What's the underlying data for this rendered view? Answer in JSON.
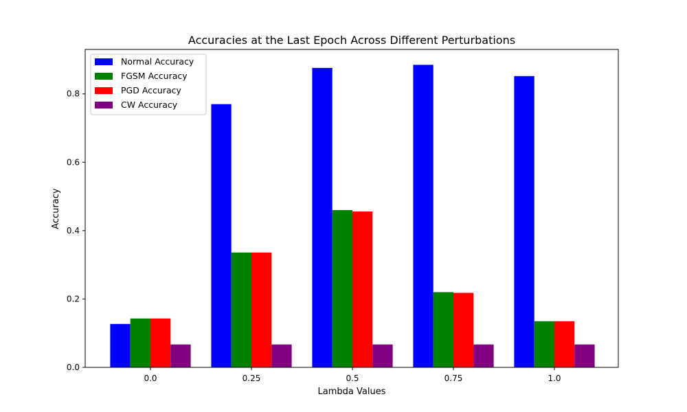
{
  "chart_data": {
    "type": "bar",
    "title": "Accuracies at the Last Epoch Across Different Perturbations",
    "xlabel": "Lambda Values",
    "ylabel": "Accuracy",
    "categories": [
      "0.0",
      "0.25",
      "0.5",
      "0.75",
      "1.0"
    ],
    "ylim": [
      0,
      0.93
    ],
    "yticks": [
      0.0,
      0.2,
      0.4,
      0.6,
      0.8
    ],
    "ytick_labels": [
      "0.0",
      "0.2",
      "0.4",
      "0.6",
      "0.8"
    ],
    "grid": false,
    "legend_position": "top-left",
    "series": [
      {
        "name": "Normal Accuracy",
        "color": "#0000ff",
        "values": [
          0.127,
          0.77,
          0.876,
          0.885,
          0.852
        ]
      },
      {
        "name": "FGSM Accuracy",
        "color": "#008000",
        "values": [
          0.143,
          0.336,
          0.46,
          0.22,
          0.135
        ]
      },
      {
        "name": "PGD Accuracy",
        "color": "#ff0000",
        "values": [
          0.143,
          0.336,
          0.456,
          0.218,
          0.135
        ]
      },
      {
        "name": "CW Accuracy",
        "color": "#800080",
        "values": [
          0.067,
          0.067,
          0.067,
          0.067,
          0.067
        ]
      }
    ]
  }
}
